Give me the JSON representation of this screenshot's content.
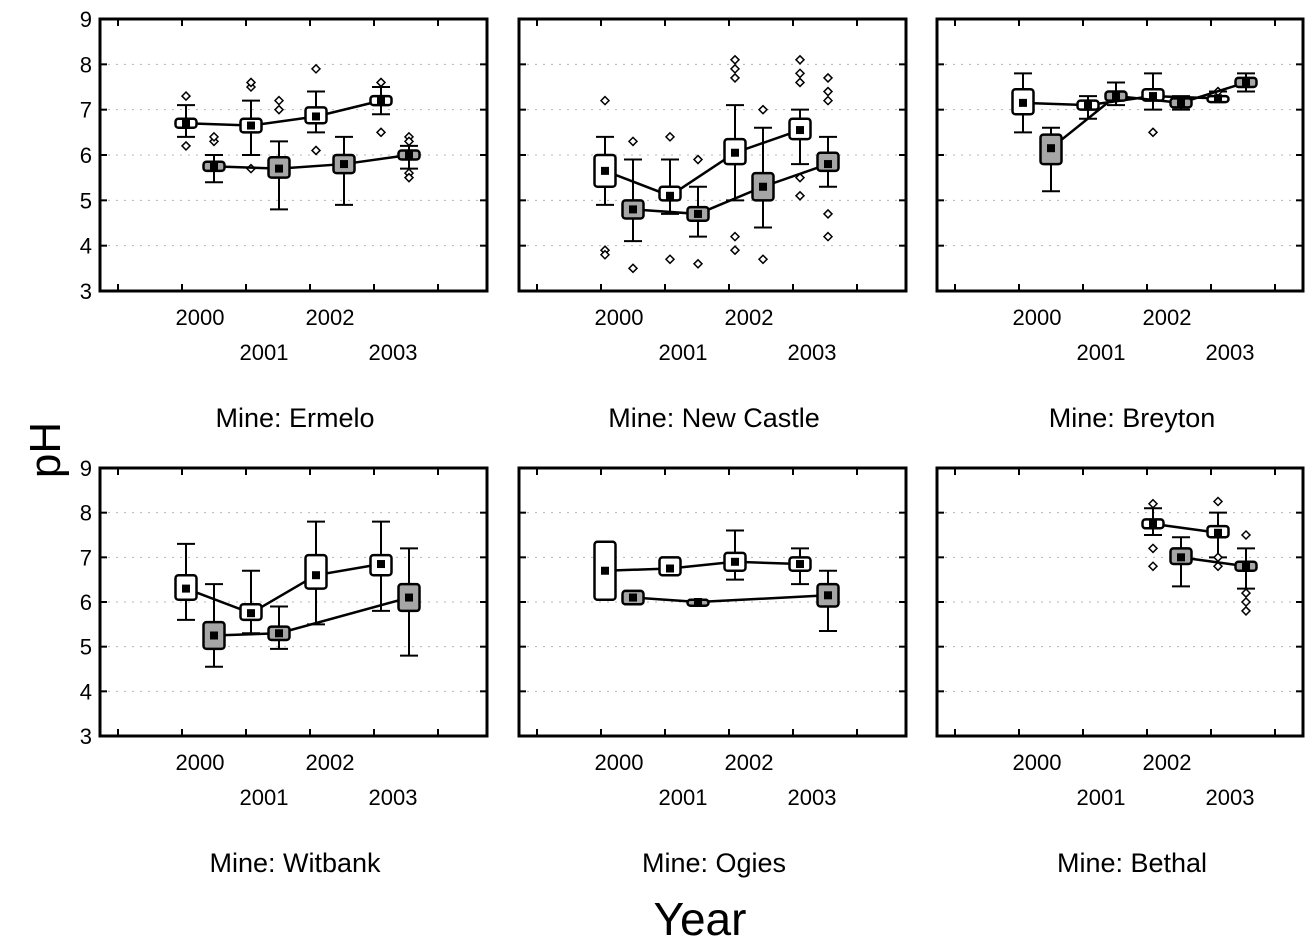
{
  "chart_data": {
    "type": "box",
    "ylabel": "pH",
    "xlabel": "Year",
    "ylim": [
      3,
      9
    ],
    "yticks": [
      3,
      4,
      5,
      6,
      7,
      8,
      9
    ],
    "year_ticks": [
      "2000",
      "2001",
      "2002",
      "2003"
    ],
    "grid": "dotted",
    "box_styles": {
      "open": "#ffffff",
      "filled": "#a6a6a6"
    },
    "panels": [
      {
        "title": "Mine: Ermelo",
        "series": [
          {
            "style": "open",
            "boxes": [
              {
                "year": "2000",
                "median": 6.7,
                "q1": 6.6,
                "q3": 6.8,
                "whisker_low": 6.4,
                "whisker_high": 7.1,
                "outliers": [
                  7.3,
                  6.2
                ]
              },
              {
                "year": "2001",
                "median": 6.65,
                "q1": 6.5,
                "q3": 6.8,
                "whisker_low": 6.0,
                "whisker_high": 7.2,
                "outliers": [
                  7.5,
                  7.6,
                  5.7
                ]
              },
              {
                "year": "2002",
                "median": 6.85,
                "q1": 6.7,
                "q3": 7.05,
                "whisker_low": 6.5,
                "whisker_high": 7.4,
                "outliers": [
                  7.9,
                  6.1
                ]
              },
              {
                "year": "2003",
                "median": 7.2,
                "q1": 7.1,
                "q3": 7.3,
                "whisker_low": 6.9,
                "whisker_high": 7.5,
                "outliers": [
                  7.6,
                  6.5
                ]
              }
            ]
          },
          {
            "style": "filled",
            "boxes": [
              {
                "year": "2000",
                "median": 5.75,
                "q1": 5.65,
                "q3": 5.85,
                "whisker_low": 5.4,
                "whisker_high": 6.0,
                "outliers": [
                  6.3,
                  6.4
                ]
              },
              {
                "year": "2001",
                "median": 5.7,
                "q1": 5.5,
                "q3": 5.95,
                "whisker_low": 4.8,
                "whisker_high": 6.3,
                "outliers": [
                  7.0,
                  7.2
                ]
              },
              {
                "year": "2002",
                "median": 5.8,
                "q1": 5.6,
                "q3": 6.0,
                "whisker_low": 4.9,
                "whisker_high": 6.4,
                "outliers": []
              },
              {
                "year": "2003",
                "median": 6.0,
                "q1": 5.9,
                "q3": 6.1,
                "whisker_low": 5.7,
                "whisker_high": 6.2,
                "outliers": [
                  6.4,
                  6.3,
                  5.6,
                  5.5
                ]
              }
            ]
          }
        ]
      },
      {
        "title": "Mine: New Castle",
        "series": [
          {
            "style": "open",
            "boxes": [
              {
                "year": "2000",
                "median": 5.65,
                "q1": 5.3,
                "q3": 6.0,
                "whisker_low": 4.9,
                "whisker_high": 6.4,
                "outliers": [
                  7.2,
                  3.9,
                  3.8
                ]
              },
              {
                "year": "2001",
                "median": 5.1,
                "q1": 5.0,
                "q3": 5.3,
                "whisker_low": 4.7,
                "whisker_high": 5.9,
                "outliers": [
                  6.4,
                  3.7
                ]
              },
              {
                "year": "2002",
                "median": 6.05,
                "q1": 5.8,
                "q3": 6.35,
                "whisker_low": 5.0,
                "whisker_high": 7.1,
                "outliers": [
                  8.1,
                  7.9,
                  7.7,
                  4.2,
                  3.9
                ]
              },
              {
                "year": "2003",
                "median": 6.55,
                "q1": 6.35,
                "q3": 6.8,
                "whisker_low": 5.8,
                "whisker_high": 7.0,
                "outliers": [
                  8.1,
                  7.8,
                  7.6,
                  5.5,
                  5.1
                ]
              }
            ]
          },
          {
            "style": "filled",
            "boxes": [
              {
                "year": "2000",
                "median": 4.8,
                "q1": 4.6,
                "q3": 5.0,
                "whisker_low": 4.1,
                "whisker_high": 5.9,
                "outliers": [
                  6.3,
                  3.5
                ]
              },
              {
                "year": "2001",
                "median": 4.7,
                "q1": 4.55,
                "q3": 4.85,
                "whisker_low": 4.2,
                "whisker_high": 5.3,
                "outliers": [
                  5.9,
                  3.6
                ]
              },
              {
                "year": "2002",
                "median": 5.3,
                "q1": 5.0,
                "q3": 5.6,
                "whisker_low": 4.4,
                "whisker_high": 6.6,
                "outliers": [
                  7.0,
                  3.7
                ]
              },
              {
                "year": "2003",
                "median": 5.8,
                "q1": 5.65,
                "q3": 6.05,
                "whisker_low": 5.3,
                "whisker_high": 6.4,
                "outliers": [
                  7.7,
                  7.4,
                  7.2,
                  4.7,
                  4.2
                ]
              }
            ]
          }
        ]
      },
      {
        "title": "Mine: Breyton",
        "series": [
          {
            "style": "open",
            "boxes": [
              {
                "year": "2000",
                "median": 7.15,
                "q1": 6.9,
                "q3": 7.45,
                "whisker_low": 6.5,
                "whisker_high": 7.8,
                "outliers": []
              },
              {
                "year": "2001",
                "median": 7.1,
                "q1": 7.0,
                "q3": 7.2,
                "whisker_low": 6.8,
                "whisker_high": 7.3,
                "outliers": []
              },
              {
                "year": "2002",
                "median": 7.3,
                "q1": 7.2,
                "q3": 7.45,
                "whisker_low": 7.0,
                "whisker_high": 7.8,
                "outliers": [
                  6.5
                ]
              },
              {
                "year": "2003",
                "median": 7.25,
                "q1": 7.2,
                "q3": 7.3,
                "whisker_low": 7.2,
                "whisker_high": 7.4,
                "outliers": [
                  7.4
                ]
              }
            ]
          },
          {
            "style": "filled",
            "boxes": [
              {
                "year": "2000",
                "median": 6.15,
                "q1": 5.8,
                "q3": 6.45,
                "whisker_low": 5.2,
                "whisker_high": 6.6,
                "outliers": []
              },
              {
                "year": "2001",
                "median": 7.3,
                "q1": 7.2,
                "q3": 7.4,
                "whisker_low": 7.1,
                "whisker_high": 7.6,
                "outliers": []
              },
              {
                "year": "2002",
                "median": 7.15,
                "q1": 7.05,
                "q3": 7.25,
                "whisker_low": 7.0,
                "whisker_high": 7.3,
                "outliers": []
              },
              {
                "year": "2003",
                "median": 7.6,
                "q1": 7.5,
                "q3": 7.7,
                "whisker_low": 7.4,
                "whisker_high": 7.8,
                "outliers": []
              }
            ]
          }
        ]
      },
      {
        "title": "Mine: Witbank",
        "series": [
          {
            "style": "open",
            "boxes": [
              {
                "year": "2000",
                "median": 6.3,
                "q1": 6.05,
                "q3": 6.6,
                "whisker_low": 5.6,
                "whisker_high": 7.3,
                "outliers": []
              },
              {
                "year": "2001",
                "median": 5.75,
                "q1": 5.6,
                "q3": 5.95,
                "whisker_low": 5.3,
                "whisker_high": 6.7,
                "outliers": []
              },
              {
                "year": "2002",
                "median": 6.6,
                "q1": 6.3,
                "q3": 7.05,
                "whisker_low": 5.5,
                "whisker_high": 7.8,
                "outliers": []
              },
              {
                "year": "2003",
                "median": 6.85,
                "q1": 6.6,
                "q3": 7.05,
                "whisker_low": 5.8,
                "whisker_high": 7.8,
                "outliers": []
              }
            ]
          },
          {
            "style": "filled",
            "boxes": [
              {
                "year": "2000",
                "median": 5.25,
                "q1": 4.95,
                "q3": 5.55,
                "whisker_low": 4.55,
                "whisker_high": 6.4,
                "outliers": []
              },
              {
                "year": "2001",
                "median": 5.3,
                "q1": 5.15,
                "q3": 5.45,
                "whisker_low": 4.95,
                "whisker_high": 5.9,
                "outliers": []
              },
              {
                "year": "2003",
                "median": 6.1,
                "q1": 5.8,
                "q3": 6.4,
                "whisker_low": 4.8,
                "whisker_high": 7.2,
                "outliers": []
              }
            ]
          }
        ]
      },
      {
        "title": "Mine: Ogies",
        "series": [
          {
            "style": "open",
            "boxes": [
              {
                "year": "2000",
                "median": 6.7,
                "q1": 6.05,
                "q3": 7.35,
                "whisker_low": 6.05,
                "whisker_high": 7.35,
                "outliers": []
              },
              {
                "year": "2001",
                "median": 6.75,
                "q1": 6.6,
                "q3": 7.0,
                "whisker_low": 6.6,
                "whisker_high": 7.0,
                "outliers": []
              },
              {
                "year": "2002",
                "median": 6.9,
                "q1": 6.7,
                "q3": 7.1,
                "whisker_low": 6.5,
                "whisker_high": 7.6,
                "outliers": []
              },
              {
                "year": "2003",
                "median": 6.85,
                "q1": 6.7,
                "q3": 7.0,
                "whisker_low": 6.4,
                "whisker_high": 7.2,
                "outliers": []
              }
            ]
          },
          {
            "style": "filled",
            "boxes": [
              {
                "year": "2000",
                "median": 6.1,
                "q1": 5.95,
                "q3": 6.25,
                "whisker_low": 5.95,
                "whisker_high": 6.25,
                "outliers": []
              },
              {
                "year": "2001",
                "median": 6.0,
                "q1": 5.95,
                "q3": 6.05,
                "whisker_low": 5.95,
                "whisker_high": 6.05,
                "outliers": []
              },
              {
                "year": "2003",
                "median": 6.15,
                "q1": 5.9,
                "q3": 6.4,
                "whisker_low": 5.35,
                "whisker_high": 6.7,
                "outliers": []
              }
            ]
          }
        ]
      },
      {
        "title": "Mine: Bethal",
        "series": [
          {
            "style": "open",
            "boxes": [
              {
                "year": "2002",
                "median": 7.75,
                "q1": 7.65,
                "q3": 7.85,
                "whisker_low": 7.5,
                "whisker_high": 8.1,
                "outliers": [
                  8.2,
                  7.2,
                  6.8
                ]
              },
              {
                "year": "2003",
                "median": 7.55,
                "q1": 7.45,
                "q3": 7.7,
                "whisker_low": 7.0,
                "whisker_high": 8.0,
                "outliers": [
                  8.25,
                  7.0,
                  6.8
                ]
              }
            ]
          },
          {
            "style": "filled",
            "boxes": [
              {
                "year": "2002",
                "median": 7.0,
                "q1": 6.85,
                "q3": 7.2,
                "whisker_low": 6.35,
                "whisker_high": 7.45,
                "outliers": []
              },
              {
                "year": "2003",
                "median": 6.8,
                "q1": 6.7,
                "q3": 6.9,
                "whisker_low": 6.3,
                "whisker_high": 7.2,
                "outliers": [
                  7.5,
                  6.2,
                  6.0,
                  5.8
                ]
              }
            ]
          }
        ]
      }
    ]
  }
}
